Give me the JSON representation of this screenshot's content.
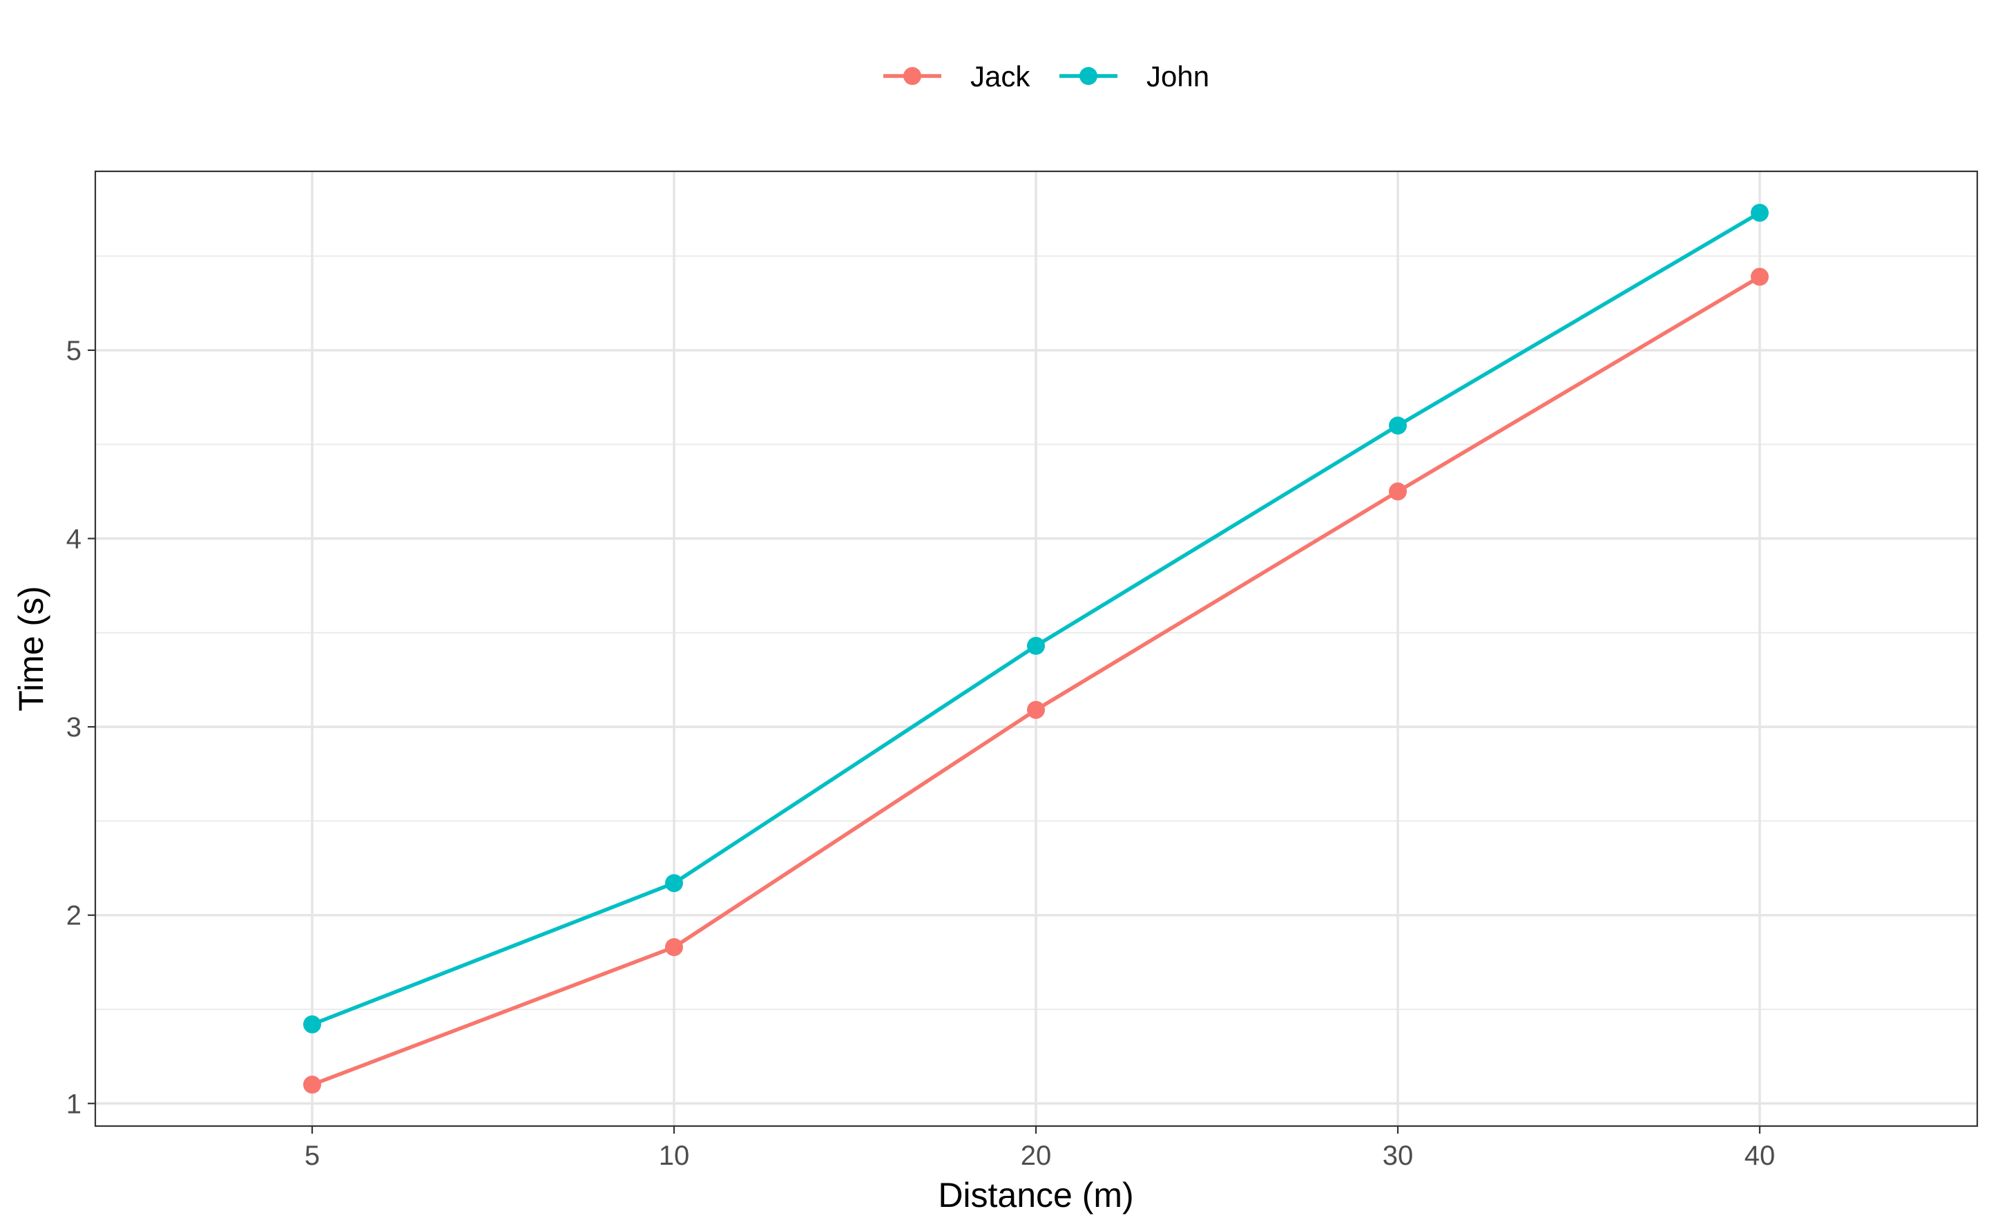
{
  "chart_data": {
    "type": "line",
    "x": [
      5,
      10,
      20,
      30,
      40
    ],
    "x_tick_labels": [
      "5",
      "10",
      "20",
      "30",
      "40"
    ],
    "y_ticks": [
      1,
      2,
      3,
      4,
      5
    ],
    "y_tick_labels": [
      "1",
      "2",
      "3",
      "4",
      "5"
    ],
    "series": [
      {
        "name": "Jack",
        "color": "#F8766D",
        "values": [
          1.1,
          1.83,
          3.09,
          4.25,
          5.39
        ]
      },
      {
        "name": "John",
        "color": "#00BFC4",
        "values": [
          1.42,
          2.17,
          3.43,
          4.6,
          5.73
        ]
      }
    ],
    "title": "",
    "xlabel": "Distance (m)",
    "ylabel": "Time (s)",
    "x_scale": "categorical",
    "ylim": [
      0.88,
      5.95
    ],
    "grid": true,
    "legend_position": "top"
  }
}
